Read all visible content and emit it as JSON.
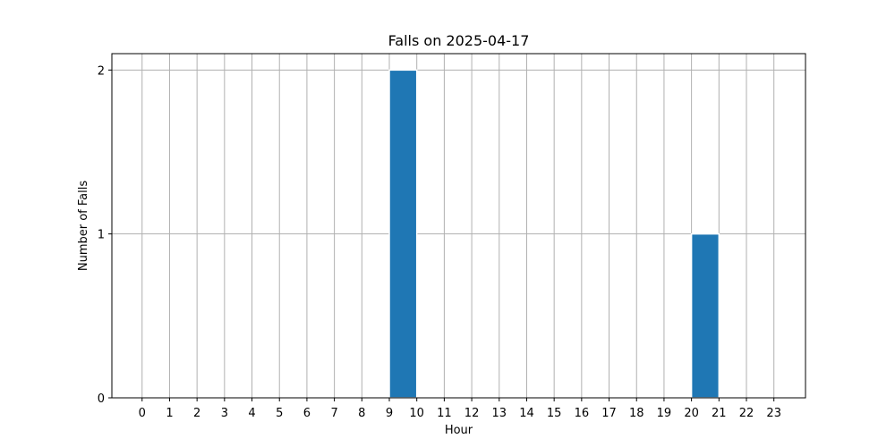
{
  "chart_data": {
    "type": "bar",
    "title": "Falls on 2025-04-17",
    "xlabel": "Hour",
    "ylabel": "Number of Falls",
    "x_ticks": [
      0,
      1,
      2,
      3,
      4,
      5,
      6,
      7,
      8,
      9,
      10,
      11,
      12,
      13,
      14,
      15,
      16,
      17,
      18,
      19,
      20,
      21,
      22,
      23
    ],
    "y_ticks": [
      0,
      1,
      2
    ],
    "xlim": [
      -1.1,
      24.15
    ],
    "ylim": [
      0,
      2.1
    ],
    "grid": true,
    "bar_color": "#1f77b4",
    "series": [
      {
        "values": [
          {
            "x_start": 9,
            "x_end": 10,
            "y": 2
          },
          {
            "x_start": 20,
            "x_end": 21,
            "y": 1
          }
        ]
      }
    ]
  }
}
